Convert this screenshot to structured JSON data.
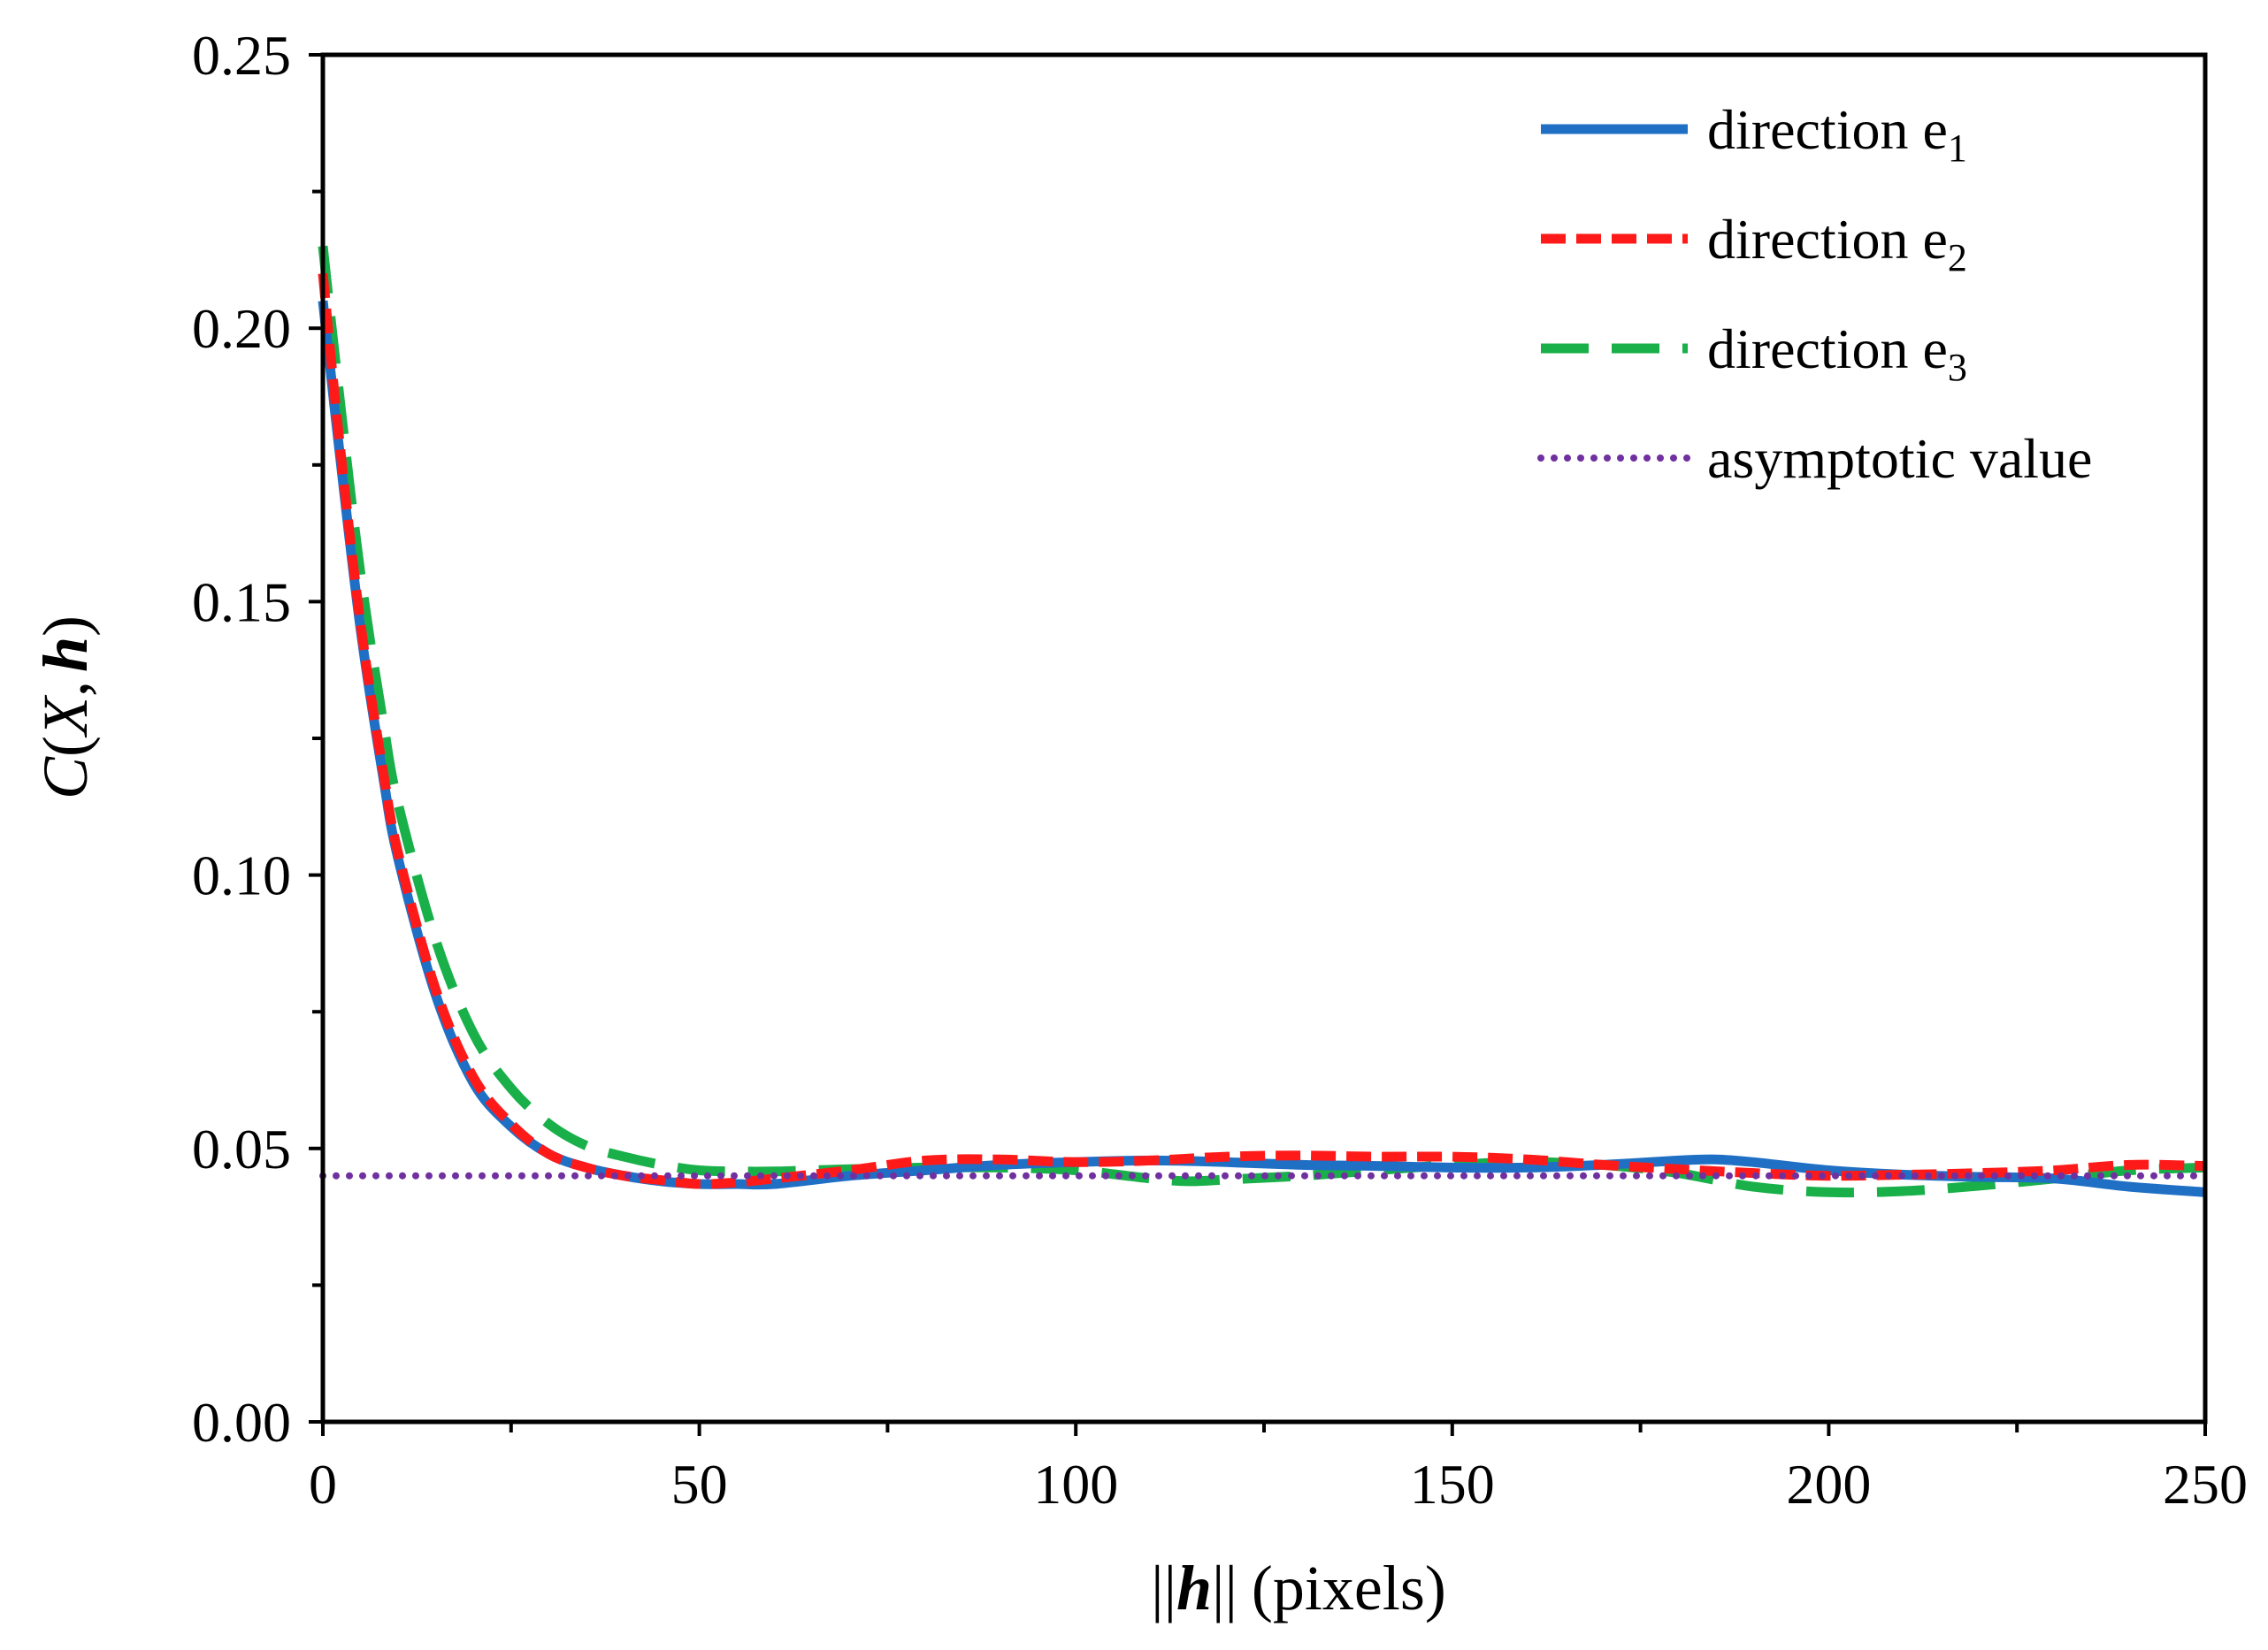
{
  "chart_data": {
    "type": "line",
    "title": "",
    "xlabel": "||h|| (pixels)",
    "xlabel_norm_bars": "||",
    "xlabel_var": "h",
    "xlabel_unit": "(pixels)",
    "ylabel": "C(X, h)",
    "ylabel_func": "C",
    "ylabel_open": "(",
    "ylabel_arg1": "X",
    "ylabel_sep": ",",
    "ylabel_arg2": "h",
    "ylabel_close": ")",
    "xlim": [
      0,
      250
    ],
    "ylim": [
      0,
      0.25
    ],
    "xticks": [
      0,
      50,
      100,
      150,
      200,
      250
    ],
    "xtick_labels": [
      "0",
      "50",
      "100",
      "150",
      "200",
      "250"
    ],
    "xminor_step": 25,
    "yticks": [
      0,
      0.05,
      0.1,
      0.15,
      0.2,
      0.25
    ],
    "ytick_labels": [
      "0.00",
      "0.05",
      "0.10",
      "0.15",
      "0.20",
      "0.25"
    ],
    "yminor_step": 0.025,
    "grid": false,
    "legend_position": "top-right",
    "series": [
      {
        "name": "direction e1",
        "label_base": "direction e",
        "label_sub": "1",
        "color": "#1f6fc5",
        "style": "solid",
        "x": [
          0,
          2,
          5,
          8,
          10,
          15,
          20,
          25,
          30,
          35,
          40,
          45,
          50,
          55,
          60,
          70,
          80,
          90,
          100,
          110,
          120,
          130,
          140,
          150,
          160,
          170,
          180,
          185,
          190,
          200,
          210,
          220,
          230,
          240,
          250
        ],
        "y": [
          0.205,
          0.18,
          0.145,
          0.118,
          0.103,
          0.078,
          0.062,
          0.054,
          0.049,
          0.0465,
          0.045,
          0.044,
          0.0435,
          0.0435,
          0.0435,
          0.045,
          0.046,
          0.047,
          0.0475,
          0.0478,
          0.0475,
          0.047,
          0.0468,
          0.0465,
          0.0465,
          0.047,
          0.0478,
          0.048,
          0.0475,
          0.046,
          0.0452,
          0.0448,
          0.0445,
          0.043,
          0.042
        ]
      },
      {
        "name": "direction e2",
        "label_base": "direction e",
        "label_sub": "2",
        "color": "#ff1a1a",
        "style": "dash",
        "x": [
          0,
          2,
          5,
          8,
          10,
          15,
          20,
          25,
          30,
          35,
          40,
          45,
          50,
          55,
          60,
          70,
          80,
          90,
          100,
          110,
          120,
          130,
          140,
          150,
          160,
          170,
          180,
          190,
          200,
          210,
          220,
          230,
          240,
          250
        ],
        "y": [
          0.21,
          0.182,
          0.146,
          0.119,
          0.104,
          0.079,
          0.063,
          0.0545,
          0.049,
          0.0465,
          0.045,
          0.0442,
          0.0435,
          0.0438,
          0.0445,
          0.046,
          0.0478,
          0.048,
          0.0475,
          0.0478,
          0.0485,
          0.0487,
          0.0485,
          0.0485,
          0.048,
          0.047,
          0.0462,
          0.0455,
          0.045,
          0.0452,
          0.0455,
          0.046,
          0.047,
          0.0468
        ]
      },
      {
        "name": "direction e3",
        "label_base": "direction e",
        "label_sub": "3",
        "color": "#19b04a",
        "style": "longdash",
        "x": [
          0,
          2,
          5,
          8,
          10,
          15,
          20,
          25,
          30,
          35,
          40,
          45,
          50,
          55,
          60,
          65,
          70,
          80,
          90,
          100,
          110,
          115,
          120,
          130,
          140,
          150,
          160,
          170,
          180,
          190,
          200,
          210,
          220,
          230,
          240,
          250
        ],
        "y": [
          0.215,
          0.19,
          0.155,
          0.128,
          0.113,
          0.088,
          0.071,
          0.061,
          0.0545,
          0.0505,
          0.0485,
          0.047,
          0.046,
          0.0458,
          0.0458,
          0.046,
          0.0462,
          0.0465,
          0.0465,
          0.046,
          0.0445,
          0.044,
          0.0443,
          0.045,
          0.046,
          0.047,
          0.0475,
          0.047,
          0.0455,
          0.043,
          0.042,
          0.0422,
          0.0432,
          0.0445,
          0.046,
          0.0465
        ]
      },
      {
        "name": "asymptotic value",
        "label_base": "asymptotic value",
        "label_sub": "",
        "color": "#7030a0",
        "style": "dot",
        "x": [
          0,
          250
        ],
        "y": [
          0.045,
          0.045
        ]
      }
    ]
  }
}
